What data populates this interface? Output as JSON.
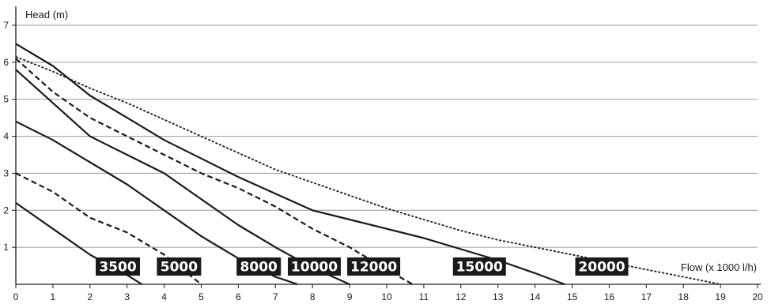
{
  "chart_data": {
    "type": "line",
    "title": "",
    "xlabel": "Flow (x 1000 l/h)",
    "ylabel": "Head (m)",
    "xlim": [
      0,
      20
    ],
    "ylim": [
      0,
      7
    ],
    "x_ticks": [
      0,
      1,
      2,
      3,
      4,
      5,
      6,
      7,
      8,
      9,
      10,
      11,
      12,
      13,
      14,
      15,
      16,
      17,
      18,
      19,
      20
    ],
    "y_ticks": [
      1,
      2,
      3,
      4,
      5,
      6,
      7
    ],
    "grid": "horizontal",
    "legend": "labels placed above x-axis",
    "series": [
      {
        "name": "3500",
        "style": "solid",
        "x": [
          0,
          1,
          2,
          3,
          3.4
        ],
        "y": [
          2.2,
          1.5,
          0.8,
          0.25,
          0
        ]
      },
      {
        "name": "5000",
        "style": "dashed",
        "x": [
          0,
          1,
          2,
          3,
          4,
          5
        ],
        "y": [
          3.0,
          2.5,
          1.8,
          1.4,
          0.8,
          0
        ]
      },
      {
        "name": "8000",
        "style": "solid",
        "x": [
          0,
          1,
          2,
          3,
          4,
          5,
          6,
          7,
          7.6
        ],
        "y": [
          4.4,
          3.9,
          3.3,
          2.7,
          2.0,
          1.3,
          0.7,
          0.2,
          0
        ]
      },
      {
        "name": "10000",
        "style": "solid",
        "x": [
          0,
          1,
          2,
          3,
          4,
          5,
          6,
          7,
          8,
          9
        ],
        "y": [
          5.8,
          4.9,
          4.0,
          3.5,
          3.0,
          2.3,
          1.6,
          1.0,
          0.45,
          0
        ]
      },
      {
        "name": "12000",
        "style": "dashed",
        "x": [
          0,
          1,
          2,
          3,
          4,
          5,
          6,
          7,
          8,
          9,
          10,
          10.7
        ],
        "y": [
          6.1,
          5.2,
          4.5,
          4.0,
          3.5,
          3.0,
          2.6,
          2.1,
          1.5,
          1.0,
          0.4,
          0
        ]
      },
      {
        "name": "15000",
        "style": "solid",
        "x": [
          0,
          1,
          2,
          3,
          4,
          5,
          6,
          7,
          8,
          9,
          10,
          11,
          12,
          13,
          14,
          14.8
        ],
        "y": [
          6.5,
          5.9,
          5.1,
          4.5,
          3.9,
          3.4,
          2.9,
          2.45,
          2.0,
          1.75,
          1.5,
          1.25,
          0.95,
          0.65,
          0.3,
          0
        ]
      },
      {
        "name": "20000",
        "style": "dotted",
        "x": [
          0,
          1,
          2,
          3,
          4,
          5,
          6,
          7,
          8,
          9,
          10,
          11,
          12,
          13,
          14,
          15,
          16,
          17,
          18,
          19
        ],
        "y": [
          6.15,
          5.75,
          5.3,
          4.9,
          4.45,
          4.0,
          3.55,
          3.1,
          2.75,
          2.4,
          2.05,
          1.75,
          1.45,
          1.2,
          1.0,
          0.8,
          0.6,
          0.4,
          0.2,
          0
        ]
      }
    ],
    "model_labels": [
      {
        "text": "3500",
        "x": 2.75
      },
      {
        "text": "5000",
        "x": 4.4
      },
      {
        "text": "8000",
        "x": 6.55
      },
      {
        "text": "10000",
        "x": 8.05
      },
      {
        "text": "12000",
        "x": 9.65
      },
      {
        "text": "15000",
        "x": 12.5
      },
      {
        "text": "20000",
        "x": 15.8
      }
    ]
  }
}
